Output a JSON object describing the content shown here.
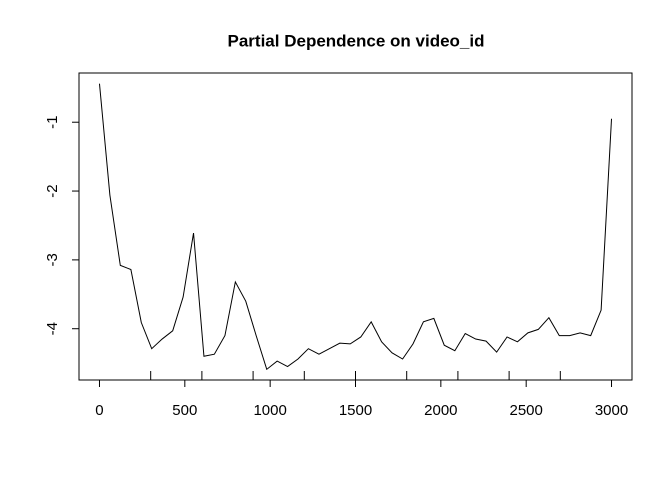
{
  "chart_data": {
    "type": "line",
    "title": "Partial Dependence on video_id",
    "x": [
      0,
      61,
      122,
      184,
      245,
      306,
      367,
      429,
      490,
      551,
      612,
      673,
      735,
      796,
      857,
      918,
      980,
      1041,
      1102,
      1163,
      1224,
      1286,
      1347,
      1408,
      1469,
      1531,
      1592,
      1653,
      1714,
      1776,
      1837,
      1898,
      1959,
      2020,
      2082,
      2143,
      2204,
      2265,
      2327,
      2388,
      2449,
      2510,
      2571,
      2633,
      2694,
      2755,
      2816,
      2878,
      2939,
      3000
    ],
    "series": [
      {
        "color": "#000000",
        "values": [
          -0.44,
          -2.06,
          -3.08,
          -3.14,
          -3.91,
          -4.29,
          -4.15,
          -4.03,
          -3.54,
          -2.61,
          -4.4,
          -4.37,
          -4.1,
          -3.32,
          -3.6,
          -4.1,
          -4.59,
          -4.47,
          -4.55,
          -4.44,
          -4.29,
          -4.37,
          -4.29,
          -4.21,
          -4.22,
          -4.12,
          -3.9,
          -4.19,
          -4.35,
          -4.44,
          -4.22,
          -3.9,
          -3.85,
          -4.24,
          -4.32,
          -4.07,
          -4.15,
          -4.18,
          -4.34,
          -4.12,
          -4.19,
          -4.06,
          -4.01,
          -3.84,
          -4.1,
          -4.1,
          -4.06,
          -4.1,
          -3.73,
          -0.95
        ]
      }
    ],
    "rug": [
      300,
      600,
      900,
      1200,
      1500,
      1800,
      2100,
      2400,
      2700
    ],
    "xlim": [
      -120,
      3120
    ],
    "ylim": [
      -4.745,
      -0.285
    ],
    "xticks": [
      0,
      500,
      1000,
      1500,
      2000,
      2500,
      3000
    ],
    "yticks": [
      -4,
      -3,
      -2,
      -1
    ]
  }
}
